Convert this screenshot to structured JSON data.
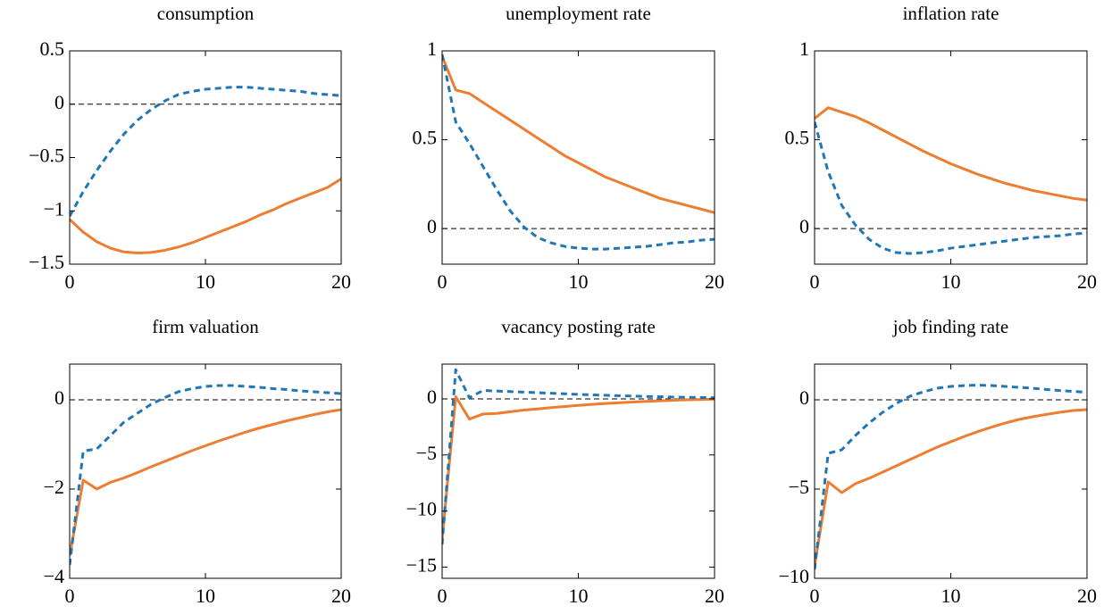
{
  "chart_data": [
    {
      "type": "line",
      "title": "consumption",
      "x": [
        0,
        1,
        2,
        3,
        4,
        5,
        6,
        7,
        8,
        9,
        10,
        11,
        12,
        13,
        14,
        15,
        16,
        17,
        18,
        19,
        20
      ],
      "xlim": [
        0,
        20
      ],
      "xticks": [
        0,
        10,
        20
      ],
      "ylim": [
        -1.5,
        0.5
      ],
      "yticks": [
        {
          "value": -1.5,
          "label": "−1.5"
        },
        {
          "value": -1,
          "label": "−1"
        },
        {
          "value": -0.5,
          "label": "−0.5"
        },
        0,
        0.5
      ],
      "zero_line": true,
      "series": [
        {
          "color": "#ed7d31",
          "style": "solid",
          "values": [
            -1.08,
            -1.2,
            -1.29,
            -1.35,
            -1.385,
            -1.395,
            -1.39,
            -1.37,
            -1.34,
            -1.3,
            -1.25,
            -1.2,
            -1.15,
            -1.1,
            -1.04,
            -0.99,
            -0.93,
            -0.88,
            -0.83,
            -0.78,
            -0.7
          ]
        },
        {
          "color": "#1f77b4",
          "style": "dashed",
          "values": [
            -1.05,
            -0.82,
            -0.62,
            -0.44,
            -0.28,
            -0.15,
            -0.05,
            0.03,
            0.09,
            0.12,
            0.14,
            0.15,
            0.16,
            0.16,
            0.15,
            0.14,
            0.13,
            0.12,
            0.1,
            0.09,
            0.08
          ]
        }
      ]
    },
    {
      "type": "line",
      "title": "unemployment rate",
      "x": [
        0,
        1,
        2,
        3,
        4,
        5,
        6,
        7,
        8,
        9,
        10,
        11,
        12,
        13,
        14,
        15,
        16,
        17,
        18,
        19,
        20
      ],
      "xlim": [
        0,
        20
      ],
      "xticks": [
        0,
        10,
        20
      ],
      "ylim": [
        -0.2,
        1
      ],
      "yticks": [
        0,
        0.5,
        1
      ],
      "zero_line": true,
      "series": [
        {
          "color": "#ed7d31",
          "style": "solid",
          "values": [
            0.97,
            0.78,
            0.76,
            0.71,
            0.66,
            0.61,
            0.56,
            0.51,
            0.46,
            0.41,
            0.37,
            0.33,
            0.29,
            0.26,
            0.23,
            0.2,
            0.17,
            0.15,
            0.13,
            0.11,
            0.09
          ]
        },
        {
          "color": "#1f77b4",
          "style": "dashed",
          "values": [
            0.98,
            0.6,
            0.48,
            0.35,
            0.22,
            0.1,
            0.01,
            -0.05,
            -0.08,
            -0.1,
            -0.11,
            -0.115,
            -0.115,
            -0.11,
            -0.105,
            -0.1,
            -0.09,
            -0.08,
            -0.075,
            -0.065,
            -0.06
          ]
        }
      ]
    },
    {
      "type": "line",
      "title": "inflation rate",
      "x": [
        0,
        1,
        2,
        3,
        4,
        5,
        6,
        7,
        8,
        9,
        10,
        11,
        12,
        13,
        14,
        15,
        16,
        17,
        18,
        19,
        20
      ],
      "xlim": [
        0,
        20
      ],
      "xticks": [
        0,
        10,
        20
      ],
      "ylim": [
        -0.2,
        1
      ],
      "yticks": [
        0,
        0.5,
        1
      ],
      "zero_line": true,
      "series": [
        {
          "color": "#ed7d31",
          "style": "solid",
          "values": [
            0.62,
            0.68,
            0.655,
            0.63,
            0.595,
            0.555,
            0.515,
            0.475,
            0.435,
            0.4,
            0.365,
            0.335,
            0.305,
            0.28,
            0.255,
            0.235,
            0.215,
            0.2,
            0.185,
            0.17,
            0.16
          ]
        },
        {
          "color": "#1f77b4",
          "style": "dashed",
          "values": [
            0.6,
            0.32,
            0.13,
            0.02,
            -0.06,
            -0.11,
            -0.135,
            -0.14,
            -0.135,
            -0.125,
            -0.11,
            -0.1,
            -0.09,
            -0.08,
            -0.07,
            -0.06,
            -0.05,
            -0.045,
            -0.04,
            -0.03,
            -0.025
          ]
        }
      ]
    },
    {
      "type": "line",
      "title": "firm valuation",
      "x": [
        0,
        1,
        2,
        3,
        4,
        5,
        6,
        7,
        8,
        9,
        10,
        11,
        12,
        13,
        14,
        15,
        16,
        17,
        18,
        19,
        20
      ],
      "xlim": [
        0,
        20
      ],
      "xticks": [
        0,
        10,
        20
      ],
      "ylim": [
        -4,
        0.8
      ],
      "yticks": [
        {
          "value": -4,
          "label": "−4"
        },
        {
          "value": -2,
          "label": "−2"
        },
        0
      ],
      "zero_line": true,
      "series": [
        {
          "color": "#ed7d31",
          "style": "solid",
          "values": [
            -3.5,
            -1.8,
            -2.0,
            -1.85,
            -1.75,
            -1.63,
            -1.5,
            -1.38,
            -1.26,
            -1.14,
            -1.03,
            -0.92,
            -0.82,
            -0.72,
            -0.63,
            -0.55,
            -0.47,
            -0.4,
            -0.33,
            -0.27,
            -0.22
          ]
        },
        {
          "color": "#1f77b4",
          "style": "dashed",
          "values": [
            -3.7,
            -1.15,
            -1.1,
            -0.8,
            -0.5,
            -0.3,
            -0.1,
            0.05,
            0.18,
            0.25,
            0.3,
            0.32,
            0.32,
            0.3,
            0.28,
            0.25,
            0.23,
            0.2,
            0.18,
            0.16,
            0.14
          ]
        }
      ]
    },
    {
      "type": "line",
      "title": "vacancy posting rate",
      "x": [
        0,
        1,
        2,
        3,
        4,
        5,
        6,
        7,
        8,
        9,
        10,
        11,
        12,
        13,
        14,
        15,
        16,
        17,
        18,
        19,
        20
      ],
      "xlim": [
        0,
        20
      ],
      "xticks": [
        0,
        10,
        20
      ],
      "ylim": [
        -16,
        3.1
      ],
      "yticks": [
        {
          "value": -15,
          "label": "−15"
        },
        {
          "value": -10,
          "label": "−10"
        },
        {
          "value": -5,
          "label": "−5"
        },
        0
      ],
      "zero_line": true,
      "series": [
        {
          "color": "#ed7d31",
          "style": "solid",
          "values": [
            -12.5,
            0.2,
            -1.8,
            -1.35,
            -1.3,
            -1.15,
            -1.0,
            -0.9,
            -0.78,
            -0.68,
            -0.58,
            -0.49,
            -0.41,
            -0.34,
            -0.28,
            -0.22,
            -0.17,
            -0.12,
            -0.08,
            -0.05,
            -0.02
          ]
        },
        {
          "color": "#1f77b4",
          "style": "dashed",
          "values": [
            -13,
            2.6,
            0.1,
            0.75,
            0.7,
            0.65,
            0.6,
            0.55,
            0.5,
            0.45,
            0.4,
            0.36,
            0.32,
            0.28,
            0.25,
            0.22,
            0.19,
            0.16,
            0.14,
            0.12,
            0.1
          ]
        }
      ]
    },
    {
      "type": "line",
      "title": "job finding rate",
      "x": [
        0,
        1,
        2,
        3,
        4,
        5,
        6,
        7,
        8,
        9,
        10,
        11,
        12,
        13,
        14,
        15,
        16,
        17,
        18,
        19,
        20
      ],
      "xlim": [
        0,
        20
      ],
      "xticks": [
        0,
        10,
        20
      ],
      "ylim": [
        -10,
        2
      ],
      "yticks": [
        {
          "value": -10,
          "label": "−10"
        },
        {
          "value": -5,
          "label": "−5"
        },
        0
      ],
      "zero_line": true,
      "series": [
        {
          "color": "#ed7d31",
          "style": "solid",
          "values": [
            -9.3,
            -4.6,
            -5.2,
            -4.7,
            -4.4,
            -4.05,
            -3.7,
            -3.35,
            -3.0,
            -2.65,
            -2.35,
            -2.05,
            -1.78,
            -1.53,
            -1.3,
            -1.1,
            -0.95,
            -0.82,
            -0.7,
            -0.6,
            -0.55
          ]
        },
        {
          "color": "#1f77b4",
          "style": "dashed",
          "values": [
            -9.5,
            -3.0,
            -2.8,
            -2.0,
            -1.3,
            -0.7,
            -0.2,
            0.2,
            0.45,
            0.65,
            0.75,
            0.8,
            0.82,
            0.8,
            0.75,
            0.7,
            0.65,
            0.58,
            0.52,
            0.47,
            0.42
          ]
        }
      ]
    }
  ]
}
